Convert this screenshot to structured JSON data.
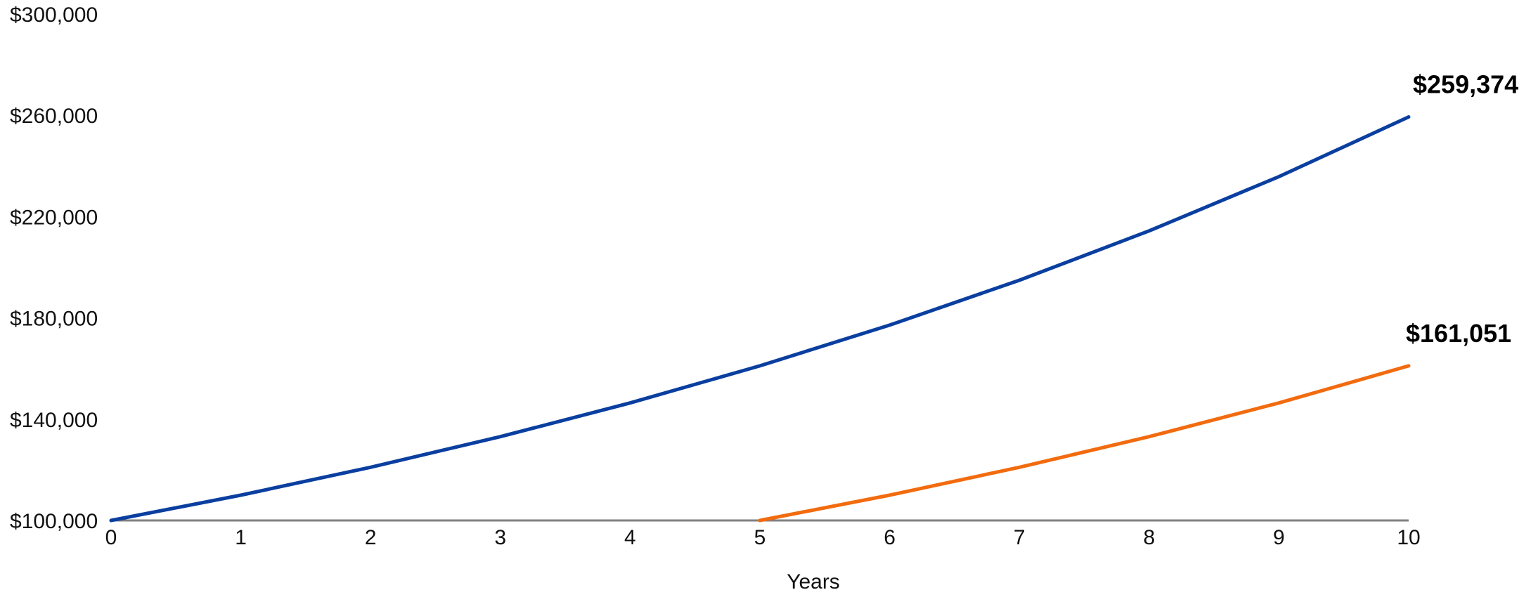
{
  "chart_data": {
    "type": "line",
    "title": "",
    "xlabel": "Years",
    "ylabel": "",
    "x": [
      0,
      1,
      2,
      3,
      4,
      5,
      6,
      7,
      8,
      9,
      10
    ],
    "x_tick_labels": [
      "0",
      "1",
      "2",
      "3",
      "4",
      "5",
      "6",
      "7",
      "8",
      "9",
      "10"
    ],
    "ylim": [
      100000,
      300000
    ],
    "y_ticks": [
      100000,
      140000,
      180000,
      220000,
      260000,
      300000
    ],
    "y_tick_labels": [
      "$100,000",
      "$140,000",
      "$180,000",
      "$220,000",
      "$260,000",
      "$300,000"
    ],
    "grid": false,
    "series": [
      {
        "color": "#0a3fa0",
        "x": [
          0,
          1,
          2,
          3,
          4,
          5,
          6,
          7,
          8,
          9,
          10
        ],
        "values": [
          100000,
          110000,
          121000,
          133100,
          146410,
          161051,
          177156,
          194872,
          214359,
          235795,
          259374
        ],
        "end_label": "$259,374"
      },
      {
        "color": "#f26b0f",
        "x": [
          5,
          6,
          7,
          8,
          9,
          10
        ],
        "values": [
          100000,
          110000,
          121000,
          133100,
          146410,
          161051
        ],
        "end_label": "$161,051"
      }
    ],
    "baseline_color": "#808080"
  }
}
